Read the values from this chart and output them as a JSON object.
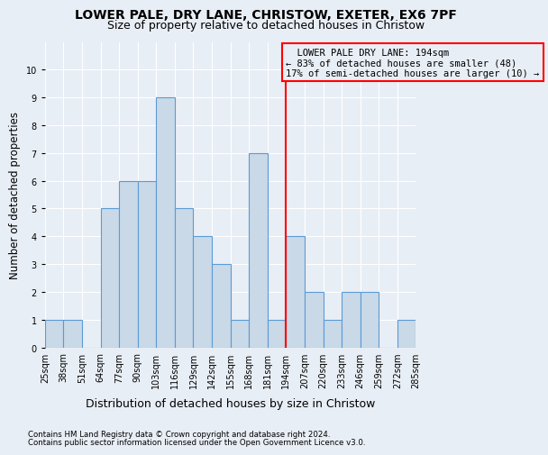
{
  "title": "LOWER PALE, DRY LANE, CHRISTOW, EXETER, EX6 7PF",
  "subtitle": "Size of property relative to detached houses in Christow",
  "xlabel": "Distribution of detached houses by size in Christow",
  "ylabel": "Number of detached properties",
  "bar_values": [
    1,
    1,
    0,
    5,
    6,
    6,
    9,
    5,
    4,
    3,
    1,
    7,
    1,
    4,
    2,
    1,
    2,
    2,
    0,
    1
  ],
  "bin_labels": [
    "25sqm",
    "38sqm",
    "51sqm",
    "64sqm",
    "77sqm",
    "90sqm",
    "103sqm",
    "116sqm",
    "129sqm",
    "142sqm",
    "155sqm",
    "168sqm",
    "181sqm",
    "194sqm",
    "207sqm",
    "220sqm",
    "233sqm",
    "246sqm",
    "259sqm",
    "272sqm",
    "285sqm"
  ],
  "bar_color": "#c9d9e8",
  "bar_edge_color": "#5b9bd5",
  "reference_line_label_idx": 13,
  "reference_line_color": "red",
  "annotation_text": "  LOWER PALE DRY LANE: 194sqm  \n← 83% of detached houses are smaller (48)\n17% of semi-detached houses are larger (10) →",
  "annotation_box_color": "red",
  "ylim": [
    0,
    11
  ],
  "footer_line1": "Contains HM Land Registry data © Crown copyright and database right 2024.",
  "footer_line2": "Contains public sector information licensed under the Open Government Licence v3.0.",
  "background_color": "#e8eef5",
  "grid_color": "#ffffff",
  "title_fontsize": 10,
  "subtitle_fontsize": 9,
  "tick_fontsize": 7,
  "ylabel_fontsize": 8.5,
  "xlabel_fontsize": 9
}
